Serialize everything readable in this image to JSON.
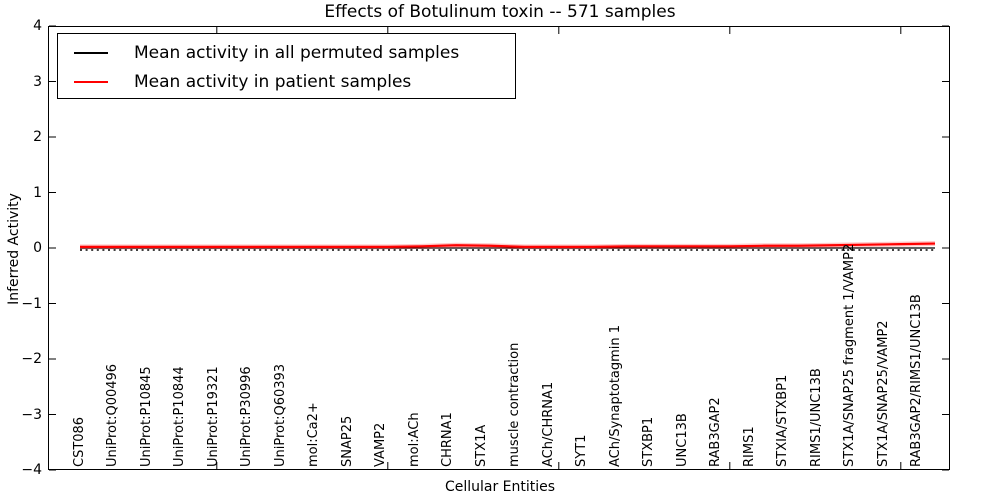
{
  "chart_data": {
    "type": "line",
    "title": "Effects of Botulinum toxin -- 571 samples",
    "xlabel": "Cellular Entities",
    "ylabel": "Inferred Activity",
    "ylim": [
      -4,
      4
    ],
    "ytick_labels": [
      "4",
      "3",
      "2",
      "1",
      "0",
      "−1",
      "−2",
      "−3",
      "−4"
    ],
    "ytick_values": [
      4,
      3,
      2,
      1,
      0,
      -1,
      -2,
      -3,
      -4
    ],
    "grid": false,
    "categories": [
      "CST086",
      "UniProt:Q00496",
      "UniProt:P10845",
      "UniProt:P10844",
      "UniProt:P19321",
      "UniProt:P30996",
      "UniProt:Q60393",
      "mol:Ca2+",
      "SNAP25",
      "VAMP2",
      "mol:ACh",
      "CHRNA1",
      "STX1A",
      "muscle contraction",
      "ACh/CHRNA1",
      "SYT1",
      "ACh/Synaptotagmin 1",
      "STXBP1",
      "UNC13B",
      "RAB3GAP2",
      "RIMS1",
      "STXIA/STXBP1",
      "RIMS1/UNC13B",
      "STX1A/SNAP25 fragment 1/VAMP2",
      "STX1A/SNAP25/VAMP2",
      "RAB3GAP2/RIMS1/UNC13B"
    ],
    "xtick_major_indices": [
      4,
      9,
      14,
      19,
      24
    ],
    "series": [
      {
        "name": "Mean activity in all permuted samples",
        "color": "#000000",
        "style": "solid",
        "values": [
          0,
          0,
          0,
          0,
          0,
          0,
          0,
          0,
          0,
          0,
          0,
          0,
          0,
          0,
          0,
          0,
          0,
          0,
          0,
          0,
          0,
          0,
          0,
          0,
          0,
          0
        ]
      },
      {
        "name": "Mean activity in patient samples",
        "color": "#ff0000",
        "style": "solid",
        "values": [
          0.02,
          0.02,
          0.02,
          0.02,
          0.02,
          0.02,
          0.02,
          0.02,
          0.02,
          0.02,
          0.03,
          0.05,
          0.04,
          0.02,
          0.02,
          0.02,
          0.03,
          0.03,
          0.03,
          0.03,
          0.04,
          0.04,
          0.05,
          0.06,
          0.07,
          0.08
        ]
      }
    ],
    "zero_line": {
      "value": 0,
      "style": "dotted",
      "color": "#000000"
    },
    "legend_position": "upper-left"
  }
}
